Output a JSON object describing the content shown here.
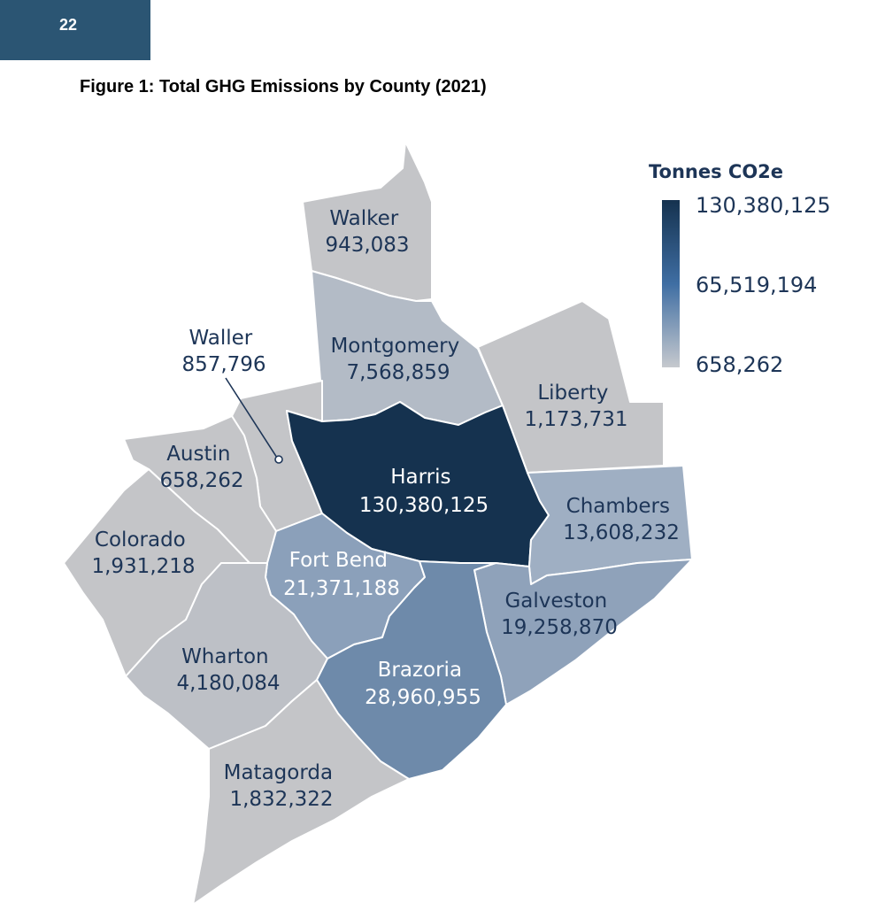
{
  "page": {
    "number": "22"
  },
  "figure": {
    "title": "Figure 1: Total GHG Emissions by County (2021)"
  },
  "legend": {
    "title": "Tonnes CO2e",
    "max": "130,380,125",
    "mid": "65,519,194",
    "min": "658,262",
    "color_high": "#15324f",
    "color_low": "#c6c9ce"
  },
  "counties": [
    {
      "name": "Walker",
      "value": "943,083",
      "color": "#c4c5c8"
    },
    {
      "name": "Montgomery",
      "value": "7,568,859",
      "color": "#b3bbc6"
    },
    {
      "name": "Liberty",
      "value": "1,173,731",
      "color": "#c4c5c8"
    },
    {
      "name": "Waller",
      "value": "857,796",
      "color": "#c4c5c8"
    },
    {
      "name": "Austin",
      "value": "658,262",
      "color": "#c4c5c8"
    },
    {
      "name": "Harris",
      "value": "130,380,125",
      "color": "#15324f"
    },
    {
      "name": "Chambers",
      "value": "13,608,232",
      "color": "#9fafc3"
    },
    {
      "name": "Colorado",
      "value": "1,931,218",
      "color": "#c4c5c8"
    },
    {
      "name": "Fort Bend",
      "value": "21,371,188",
      "color": "#8ba0ba"
    },
    {
      "name": "Galveston",
      "value": "19,258,870",
      "color": "#8fa2ba"
    },
    {
      "name": "Wharton",
      "value": "4,180,084",
      "color": "#bdc0c6"
    },
    {
      "name": "Brazoria",
      "value": "28,960,955",
      "color": "#6e8aaa"
    },
    {
      "name": "Matagorda",
      "value": "1,832,322",
      "color": "#c4c5c8"
    }
  ]
}
